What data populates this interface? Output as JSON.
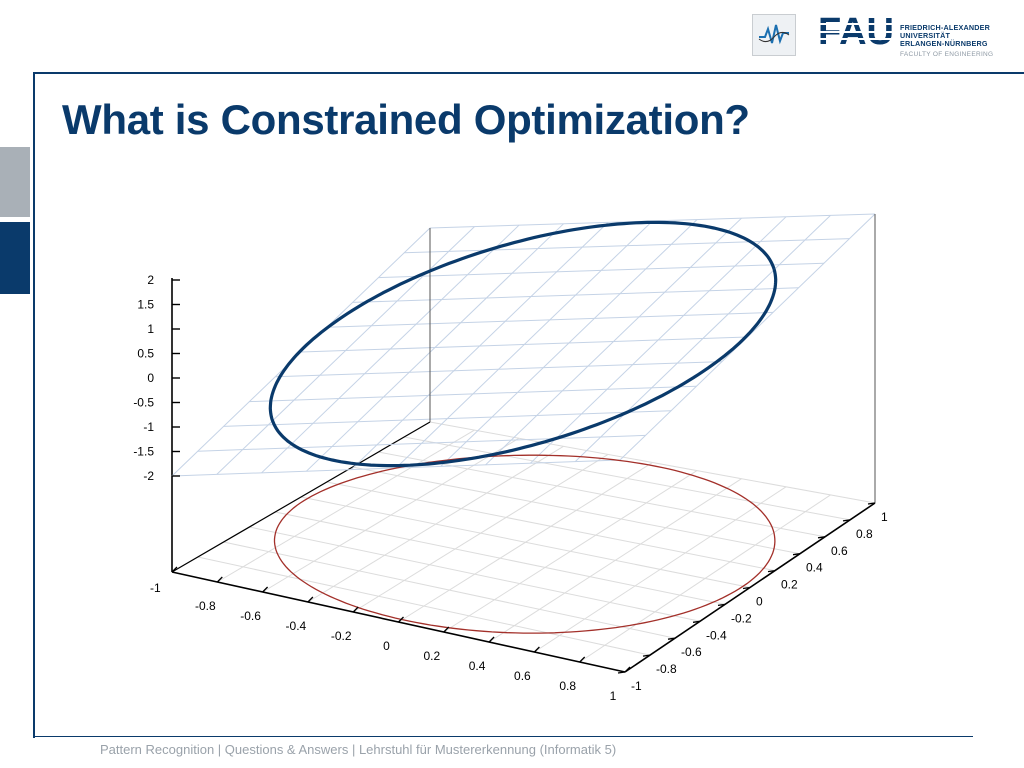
{
  "slide": {
    "title": "What is Constrained Optimization?",
    "footer": "Pattern Recognition | Questions & Answers  |   Lehrstuhl für Mustererkennung (Informatik 5)"
  },
  "logo": {
    "fau_letters": "FAU",
    "fau_name_lines": [
      "FRIEDRICH-ALEXANDER",
      "UNIVERSITÄT",
      "ERLANGEN-NÜRNBERG"
    ],
    "faculty": "FACULTY OF ENGINEERING",
    "chair_icon": "wave-icon"
  },
  "chart_data": {
    "type": "3d-surface-wireframe",
    "description_of_marks": "tilted plane with an ellipse (constraint curve lifted to the plane) and the unit circle in the x-y plane",
    "z_ticks": [
      "2",
      "1.5",
      "1",
      "0.5",
      "0",
      "-0.5",
      "-1",
      "-1.5",
      "-2"
    ],
    "x_ticks": [
      "-1",
      "-0.8",
      "-0.6",
      "-0.4",
      "-0.2",
      "0",
      "0.2",
      "0.4",
      "0.6",
      "0.8",
      "1"
    ],
    "y_ticks": [
      "-1",
      "-0.8",
      "-0.6",
      "-0.4",
      "-0.2",
      "0",
      "0.2",
      "0.4",
      "0.6",
      "0.8",
      "1"
    ],
    "xlim": [
      -1,
      1
    ],
    "ylim": [
      -1,
      1
    ],
    "zlim": [
      -2,
      2
    ],
    "plane_grid": true,
    "colors": {
      "ellipse": "#0a3a6b",
      "circle": "#a3302a",
      "plane_grid": "#c5d3e6",
      "floor_grid": "#dcdcdc",
      "accent": "#0a3a6b"
    }
  }
}
